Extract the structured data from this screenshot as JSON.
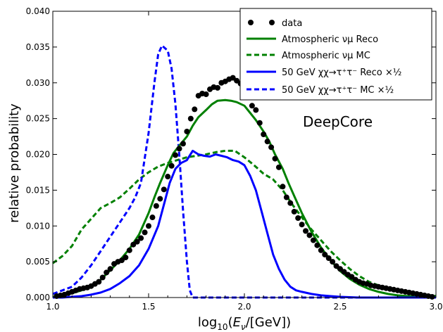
{
  "chart_data": {
    "type": "line",
    "xlabel": "log₁₀(Eν/[GeV])",
    "ylabel": "relative probability",
    "xlim": [
      1.0,
      3.0
    ],
    "ylim": [
      0.0,
      0.04
    ],
    "x_ticks": [
      1.0,
      1.5,
      2.0,
      2.5,
      3.0
    ],
    "x_tick_labels": [
      "1.0",
      "1.5",
      "2.0",
      "2.5",
      "3.0"
    ],
    "y_ticks": [
      0.0,
      0.005,
      0.01,
      0.015,
      0.02,
      0.025,
      0.03,
      0.035,
      0.04
    ],
    "y_tick_labels": [
      "0.000",
      "0.005",
      "0.010",
      "0.015",
      "0.020",
      "0.025",
      "0.030",
      "0.035",
      "0.040"
    ],
    "annotation": "DeepCore",
    "legend_position": "top-right",
    "grid": false,
    "series": [
      {
        "name": "data",
        "style": "dots",
        "color": "#000000",
        "x": [
          1.02,
          1.04,
          1.06,
          1.08,
          1.1,
          1.12,
          1.14,
          1.16,
          1.18,
          1.2,
          1.22,
          1.24,
          1.26,
          1.28,
          1.3,
          1.32,
          1.34,
          1.36,
          1.38,
          1.4,
          1.42,
          1.44,
          1.46,
          1.48,
          1.5,
          1.52,
          1.54,
          1.56,
          1.58,
          1.6,
          1.62,
          1.64,
          1.66,
          1.68,
          1.7,
          1.72,
          1.74,
          1.76,
          1.78,
          1.8,
          1.82,
          1.84,
          1.86,
          1.88,
          1.9,
          1.92,
          1.94,
          1.96,
          1.98,
          2.0,
          2.02,
          2.04,
          2.06,
          2.08,
          2.1,
          2.12,
          2.14,
          2.16,
          2.18,
          2.2,
          2.22,
          2.24,
          2.26,
          2.28,
          2.3,
          2.32,
          2.34,
          2.36,
          2.38,
          2.4,
          2.42,
          2.44,
          2.46,
          2.48,
          2.5,
          2.52,
          2.54,
          2.56,
          2.58,
          2.6,
          2.62,
          2.64,
          2.66,
          2.68,
          2.7,
          2.72,
          2.74,
          2.76,
          2.78,
          2.8,
          2.82,
          2.84,
          2.86,
          2.88,
          2.9,
          2.92,
          2.94,
          2.96,
          2.98
        ],
        "y": [
          0.0002,
          0.0003,
          0.0004,
          0.0006,
          0.0008,
          0.001,
          0.0012,
          0.0013,
          0.0014,
          0.0016,
          0.0019,
          0.0022,
          0.0028,
          0.0035,
          0.004,
          0.0047,
          0.005,
          0.0052,
          0.0056,
          0.0066,
          0.0074,
          0.0078,
          0.0083,
          0.0091,
          0.01,
          0.0112,
          0.0128,
          0.0138,
          0.0151,
          0.0169,
          0.0184,
          0.0199,
          0.0208,
          0.0215,
          0.0232,
          0.025,
          0.0263,
          0.0282,
          0.0285,
          0.0284,
          0.0291,
          0.0294,
          0.0293,
          0.03,
          0.0302,
          0.0305,
          0.0307,
          0.0303,
          0.0299,
          0.0295,
          0.028,
          0.0268,
          0.0262,
          0.0244,
          0.0228,
          0.0218,
          0.021,
          0.0194,
          0.0182,
          0.0155,
          0.014,
          0.0132,
          0.012,
          0.0111,
          0.0102,
          0.0093,
          0.0087,
          0.008,
          0.0073,
          0.0066,
          0.006,
          0.0055,
          0.005,
          0.0044,
          0.004,
          0.0036,
          0.0032,
          0.0029,
          0.0025,
          0.0022,
          0.002,
          0.0019,
          0.0017,
          0.0016,
          0.0015,
          0.0014,
          0.0013,
          0.0012,
          0.0011,
          0.001,
          0.0009,
          0.0008,
          0.0007,
          0.0006,
          0.0005,
          0.0004,
          0.0003,
          0.0002,
          0.0001
        ]
      },
      {
        "name": "Atmospheric νμ Reco",
        "style": "solid",
        "color": "#008000",
        "x": [
          1.0,
          1.05,
          1.1,
          1.15,
          1.2,
          1.25,
          1.3,
          1.35,
          1.4,
          1.45,
          1.5,
          1.53,
          1.56,
          1.6,
          1.63,
          1.66,
          1.7,
          1.73,
          1.76,
          1.8,
          1.83,
          1.86,
          1.9,
          1.93,
          1.96,
          2.0,
          2.03,
          2.06,
          2.1,
          2.13,
          2.16,
          2.2,
          2.23,
          2.26,
          2.3,
          2.35,
          2.4,
          2.45,
          2.5,
          2.55,
          2.6,
          2.65,
          2.7,
          2.75,
          2.8,
          2.85,
          2.9,
          2.95,
          3.0
        ],
        "y": [
          0.0001,
          0.0003,
          0.0006,
          0.001,
          0.0016,
          0.0025,
          0.0038,
          0.0052,
          0.0068,
          0.0088,
          0.0118,
          0.014,
          0.016,
          0.0185,
          0.0202,
          0.0212,
          0.0225,
          0.024,
          0.0252,
          0.0262,
          0.027,
          0.0275,
          0.0276,
          0.0275,
          0.0273,
          0.0268,
          0.0258,
          0.0248,
          0.0232,
          0.0218,
          0.02,
          0.018,
          0.016,
          0.0142,
          0.0118,
          0.0092,
          0.007,
          0.0052,
          0.0037,
          0.0026,
          0.0018,
          0.0012,
          0.0008,
          0.0005,
          0.0003,
          0.0002,
          0.0001,
          0.0001,
          0.0
        ]
      },
      {
        "name": "Atmospheric νμ MC",
        "style": "dashed",
        "color": "#008000",
        "x": [
          1.0,
          1.05,
          1.1,
          1.15,
          1.2,
          1.25,
          1.3,
          1.35,
          1.4,
          1.45,
          1.5,
          1.55,
          1.6,
          1.65,
          1.7,
          1.75,
          1.8,
          1.85,
          1.9,
          1.95,
          2.0,
          2.05,
          2.1,
          2.15,
          2.2,
          2.25,
          2.3,
          2.35,
          2.4,
          2.45,
          2.5,
          2.55,
          2.6,
          2.65,
          2.7,
          2.75,
          2.8,
          2.85,
          2.9,
          2.95,
          3.0
        ],
        "y": [
          0.0048,
          0.0058,
          0.0072,
          0.0095,
          0.011,
          0.0125,
          0.0132,
          0.014,
          0.0152,
          0.0165,
          0.0175,
          0.0183,
          0.0188,
          0.0192,
          0.0196,
          0.0198,
          0.02,
          0.0203,
          0.0205,
          0.0205,
          0.0196,
          0.0185,
          0.0173,
          0.0165,
          0.015,
          0.013,
          0.0112,
          0.0095,
          0.008,
          0.0065,
          0.0052,
          0.004,
          0.003,
          0.0022,
          0.0017,
          0.0013,
          0.001,
          0.0008,
          0.0006,
          0.0004,
          0.0002
        ]
      },
      {
        "name": "50 GeV χχ→τ⁺τ⁻ Reco ×½",
        "style": "solid",
        "color": "#0000ff",
        "x": [
          1.0,
          1.05,
          1.1,
          1.15,
          1.2,
          1.25,
          1.3,
          1.35,
          1.4,
          1.45,
          1.5,
          1.55,
          1.58,
          1.61,
          1.64,
          1.67,
          1.7,
          1.73,
          1.76,
          1.79,
          1.82,
          1.85,
          1.88,
          1.91,
          1.94,
          1.97,
          2.0,
          2.03,
          2.06,
          2.09,
          2.12,
          2.15,
          2.18,
          2.21,
          2.24,
          2.27,
          2.3,
          2.35,
          2.4,
          2.45,
          2.5,
          2.6,
          3.0
        ],
        "y": [
          0.0,
          0.0,
          0.0001,
          0.0002,
          0.0004,
          0.0007,
          0.0012,
          0.002,
          0.003,
          0.0045,
          0.0068,
          0.01,
          0.013,
          0.016,
          0.018,
          0.0188,
          0.0192,
          0.0205,
          0.02,
          0.0198,
          0.0197,
          0.02,
          0.0198,
          0.0196,
          0.0192,
          0.019,
          0.0185,
          0.017,
          0.015,
          0.012,
          0.009,
          0.006,
          0.004,
          0.0025,
          0.0015,
          0.001,
          0.0008,
          0.0005,
          0.0003,
          0.0002,
          0.0001,
          0.0,
          0.0
        ]
      },
      {
        "name": "50 GeV χχ→τ⁺τ⁻ MC ×½",
        "style": "dashed",
        "color": "#0000ff",
        "x": [
          1.0,
          1.05,
          1.1,
          1.15,
          1.2,
          1.25,
          1.3,
          1.35,
          1.4,
          1.43,
          1.46,
          1.5,
          1.53,
          1.55,
          1.57,
          1.6,
          1.62,
          1.64,
          1.66,
          1.68,
          1.7,
          1.715,
          1.73,
          1.8,
          2.0,
          3.0
        ],
        "y": [
          0.0005,
          0.001,
          0.0015,
          0.0028,
          0.0045,
          0.0065,
          0.0085,
          0.0105,
          0.0125,
          0.014,
          0.016,
          0.023,
          0.03,
          0.034,
          0.0352,
          0.0345,
          0.032,
          0.027,
          0.02,
          0.012,
          0.005,
          0.001,
          0.0,
          0.0,
          0.0,
          0.0
        ]
      }
    ]
  }
}
